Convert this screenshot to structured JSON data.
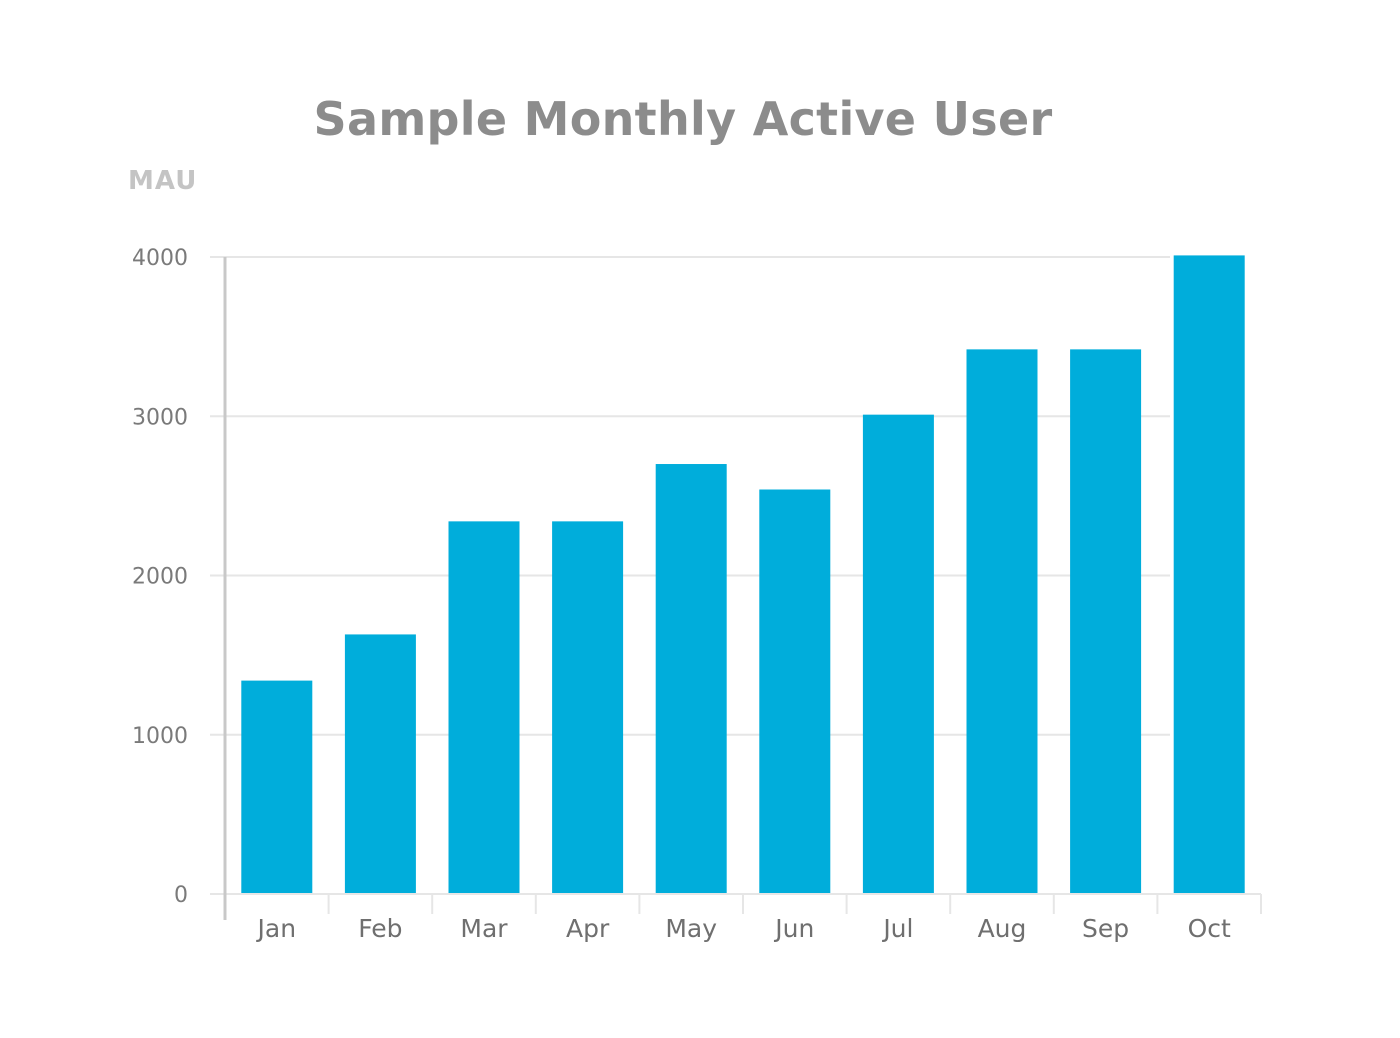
{
  "chart_data": {
    "type": "bar",
    "title": "Sample Monthly Active User",
    "ylabel": "MAU",
    "xlabel": "",
    "categories": [
      "Jan",
      "Feb",
      "Mar",
      "Apr",
      "May",
      "Jun",
      "Jul",
      "Aug",
      "Sep",
      "Oct"
    ],
    "values": [
      1340,
      1630,
      2340,
      2340,
      2700,
      2540,
      3010,
      3420,
      3420,
      4010
    ],
    "ylim": [
      0,
      4000
    ],
    "yticks": [
      0,
      1000,
      2000,
      3000,
      4000
    ],
    "grid": true,
    "legend": "none",
    "colors": {
      "bar": "#00ADDB",
      "grid": "#E6E6E6",
      "axis": "#C8C8C8"
    }
  }
}
